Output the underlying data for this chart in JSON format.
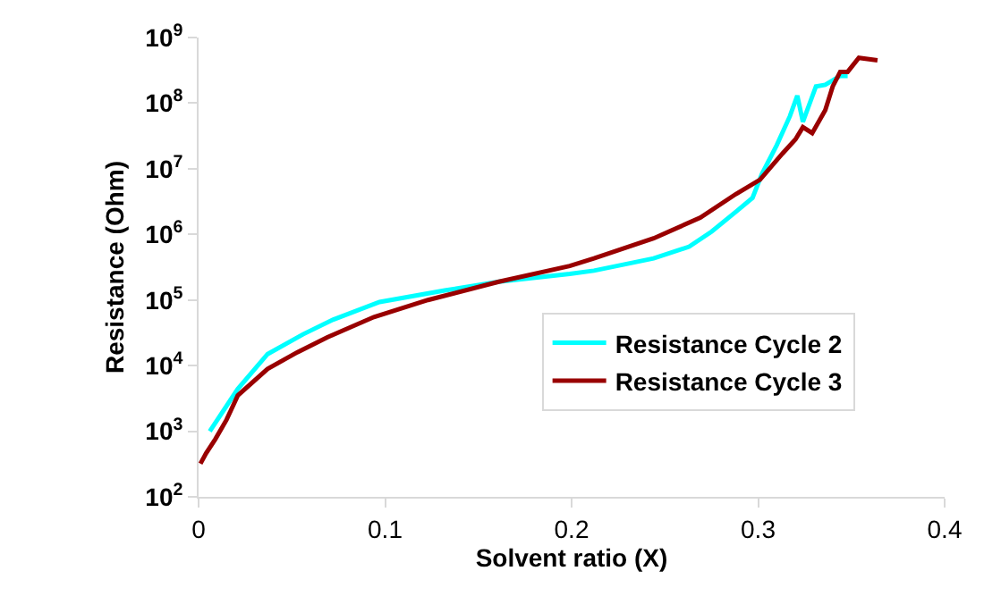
{
  "chart_data": {
    "type": "line",
    "xlabel": "Solvent ratio (X)",
    "ylabel": "Resistance (Ohm)",
    "log": "y",
    "legend": "right",
    "marker": "none",
    "line_style": "solid",
    "xlim": [
      0,
      0.4
    ],
    "xticks": [
      0,
      0.1,
      0.2,
      0.3,
      0.4
    ],
    "ylim": [
      100,
      1000000000
    ],
    "yticks": [
      {
        "value": 100,
        "label": "10$^{2}$"
      },
      {
        "value": 1000,
        "label": "10$^{3}$"
      },
      {
        "value": 10000,
        "label": "10$^{4}$"
      },
      {
        "value": 100000,
        "label": "10$^{5}$"
      },
      {
        "value": 1000000,
        "label": "10$^{6}$"
      },
      {
        "value": 10000000,
        "label": "10$^{7}$"
      },
      {
        "value": 100000000,
        "label": "10$^{8}$"
      },
      {
        "value": 1000000000,
        "label": "10$^{9}$"
      }
    ],
    "series": [
      {
        "name": "Resistance Cycle 2",
        "color": "#00ffff",
        "x": [
          0.006,
          0.021,
          0.037,
          0.056,
          0.072,
          0.097,
          0.132,
          0.161,
          0.199,
          0.212,
          0.244,
          0.263,
          0.275,
          0.288,
          0.297,
          0.302,
          0.31,
          0.317,
          0.321,
          0.324,
          0.331,
          0.336,
          0.344,
          0.348
        ],
        "values": [
          1000.0,
          4400.0,
          15000.0,
          30000.0,
          50000.0,
          93000.0,
          140000.0,
          190000.0,
          250000.0,
          280000.0,
          430000.0,
          650000.0,
          1100000.0,
          2200000.0,
          3600000.0,
          8300000.0,
          23000000.0,
          63000000.0,
          130000000.0,
          52000000.0,
          180000000.0,
          190000000.0,
          260000000.0,
          260000000.0
        ]
      },
      {
        "name": "Resistance Cycle 3",
        "color": "#990000",
        "x": [
          0.001,
          0.004,
          0.009,
          0.015,
          0.021,
          0.037,
          0.053,
          0.069,
          0.094,
          0.123,
          0.161,
          0.199,
          0.212,
          0.244,
          0.269,
          0.288,
          0.301,
          0.313,
          0.32,
          0.324,
          0.329,
          0.336,
          0.34,
          0.344,
          0.348,
          0.354,
          0.364
        ],
        "values": [
          320.0,
          460.0,
          760.0,
          1500.0,
          3500.0,
          8900.0,
          16000.0,
          27000.0,
          55000.0,
          100000.0,
          190000.0,
          330000.0,
          430000.0,
          870000.0,
          1800000.0,
          4100000.0,
          6800000.0,
          17000000.0,
          28000000.0,
          43000000.0,
          35000000.0,
          78000000.0,
          180000000.0,
          300000000.0,
          300000000.0,
          490000000.0,
          450000000.0
        ]
      }
    ]
  }
}
